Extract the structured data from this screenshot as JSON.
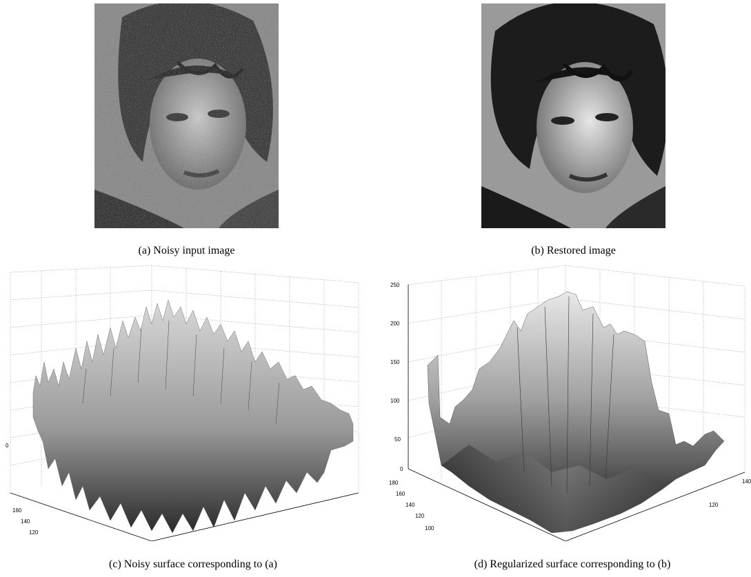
{
  "figure": {
    "panels": [
      {
        "id": "a",
        "caption": "(a) Noisy input image",
        "kind": "noisy-photo"
      },
      {
        "id": "b",
        "caption": "(b) Restored image",
        "kind": "restored-photo"
      },
      {
        "id": "c",
        "caption": "(c) Noisy surface corresponding to (a)",
        "kind": "noisy-surface",
        "z_ticks": [
          "0"
        ],
        "y_ticks": [
          "160",
          "140",
          "120"
        ],
        "x_ticks": []
      },
      {
        "id": "d",
        "caption": "(d) Regularized surface corresponding to (b)",
        "kind": "smooth-surface",
        "z_ticks": [
          "250",
          "200",
          "150",
          "100",
          "50",
          "0"
        ],
        "y_ticks": [
          "180",
          "160",
          "140",
          "120",
          "100"
        ],
        "x_ticks": [
          "120",
          "140"
        ]
      }
    ],
    "colors": {
      "surface_dark": "#1a1a1a",
      "surface_light": "#e0e0e0",
      "grid": "#999999"
    }
  }
}
